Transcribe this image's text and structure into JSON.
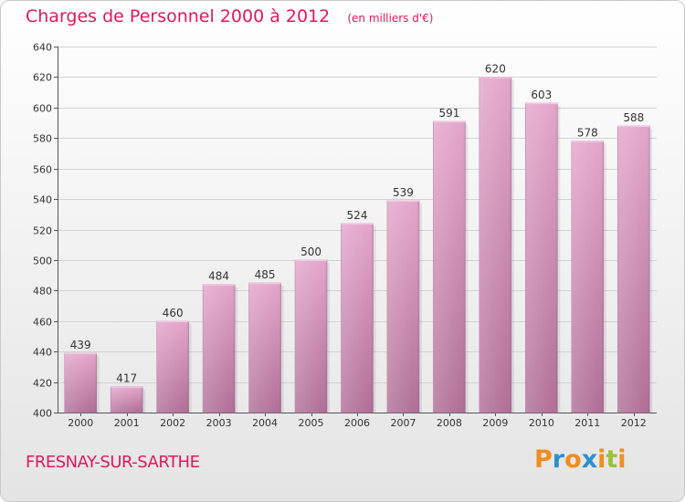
{
  "chart_data": {
    "type": "bar",
    "title": "Charges de Personnel 2000 à 2012",
    "subtitle": "(en milliers d'€)",
    "categories": [
      "2000",
      "2001",
      "2002",
      "2003",
      "2004",
      "2005",
      "2006",
      "2007",
      "2008",
      "2009",
      "2010",
      "2011",
      "2012"
    ],
    "values": [
      439,
      417,
      460,
      484,
      485,
      500,
      524,
      539,
      591,
      620,
      603,
      578,
      588
    ],
    "ylim": [
      400,
      640
    ],
    "yticks": [
      400,
      420,
      440,
      460,
      480,
      500,
      520,
      540,
      560,
      580,
      600,
      620,
      640
    ],
    "grid": true,
    "bar_color": "#cc7aaa"
  },
  "place": "FRESNAY-SUR-SARTHE",
  "brand": {
    "letters": [
      "P",
      "r",
      "o",
      "x",
      "i",
      "t",
      "i"
    ],
    "colors": [
      "#f28c1e",
      "#2d8fd0",
      "#f28c1e",
      "#2d8fd0",
      "#f28c1e",
      "#9bc13b",
      "#f28c1e"
    ]
  }
}
